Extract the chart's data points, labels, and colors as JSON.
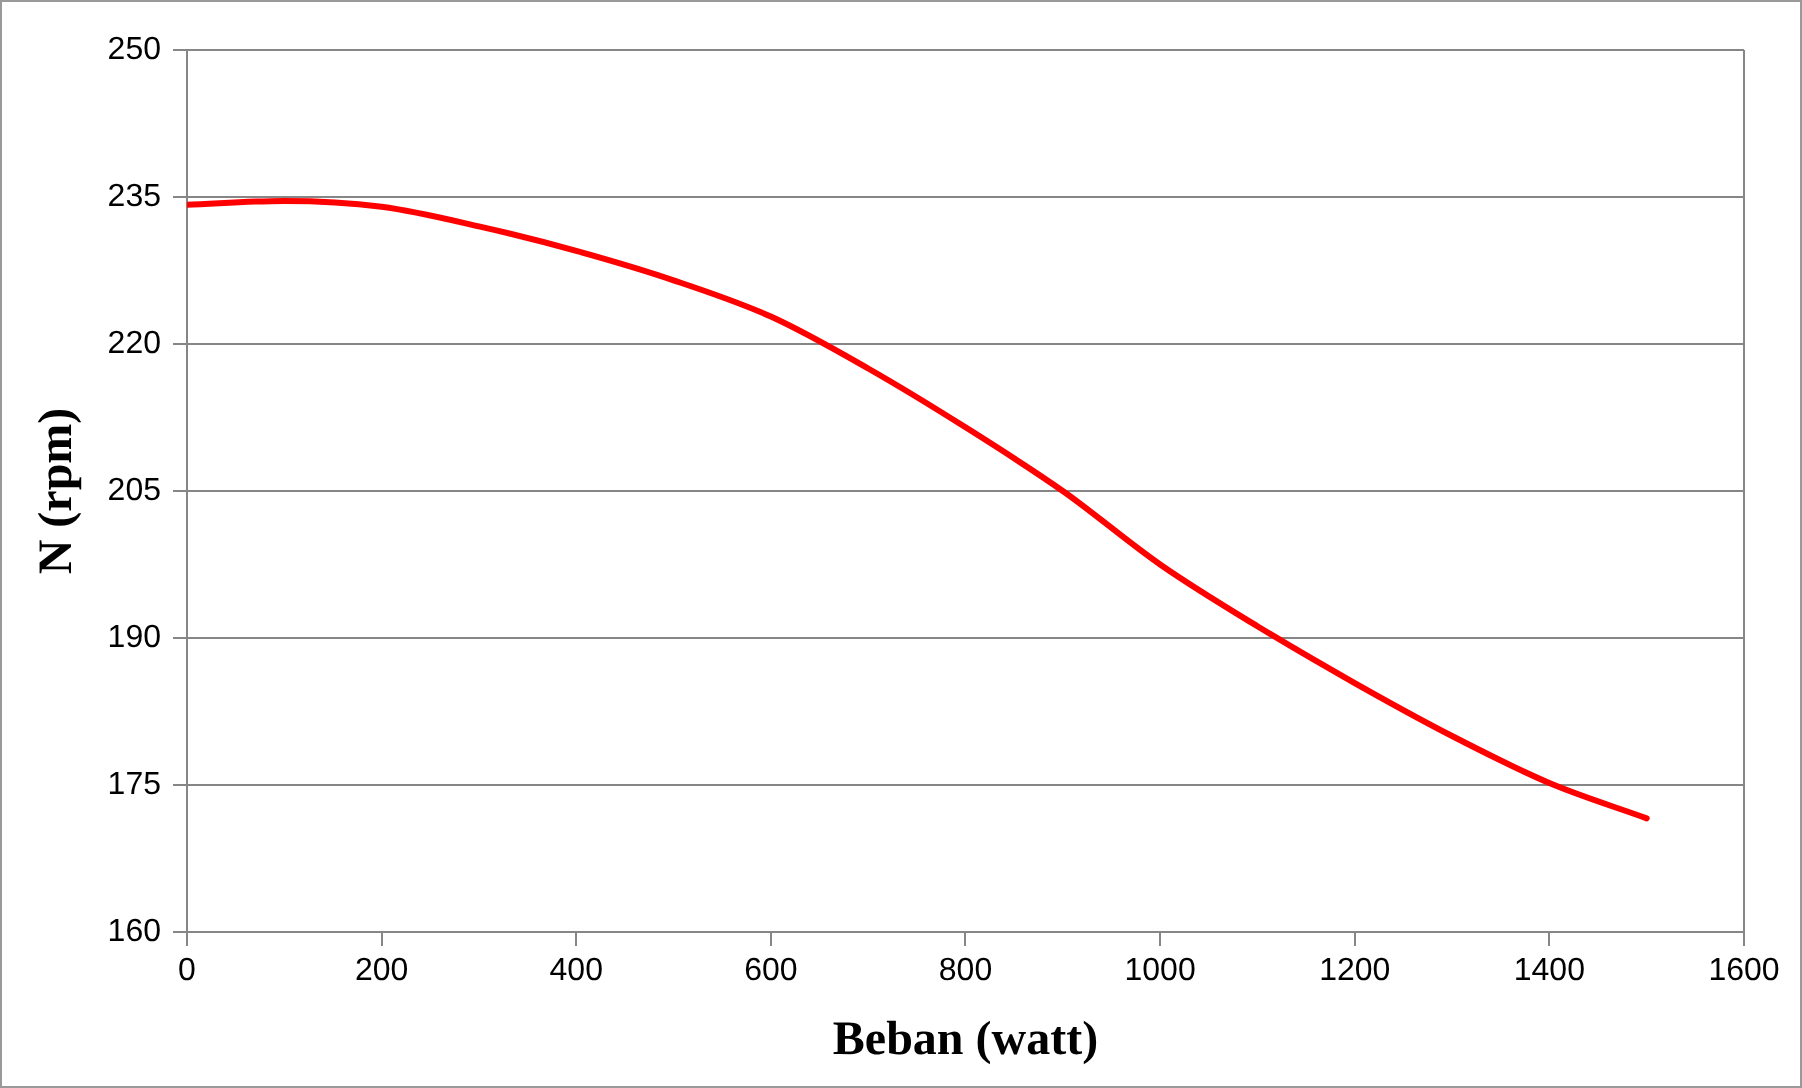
{
  "chart_data": {
    "type": "line",
    "xlabel": "Beban (watt)",
    "ylabel": "N (rpm)",
    "x": [
      0,
      100,
      200,
      300,
      400,
      500,
      600,
      700,
      800,
      900,
      1000,
      1100,
      1200,
      1300,
      1400,
      1500
    ],
    "series": [
      {
        "color": "#ff0000",
        "values": [
          234.2,
          234.6,
          234.0,
          232.0,
          229.5,
          226.5,
          222.8,
          217.5,
          211.5,
          205.0,
          197.5,
          191.2,
          185.4,
          180.0,
          175.2,
          171.6
        ]
      }
    ],
    "xlim": [
      0,
      1600
    ],
    "xticks": [
      0,
      200,
      400,
      600,
      800,
      1000,
      1200,
      1400,
      1600
    ],
    "ylim": [
      160,
      250
    ],
    "yticks": [
      160,
      175,
      190,
      205,
      220,
      235,
      250
    ],
    "grid": "y",
    "legend": false,
    "marker": "none",
    "line_style": "solid"
  }
}
